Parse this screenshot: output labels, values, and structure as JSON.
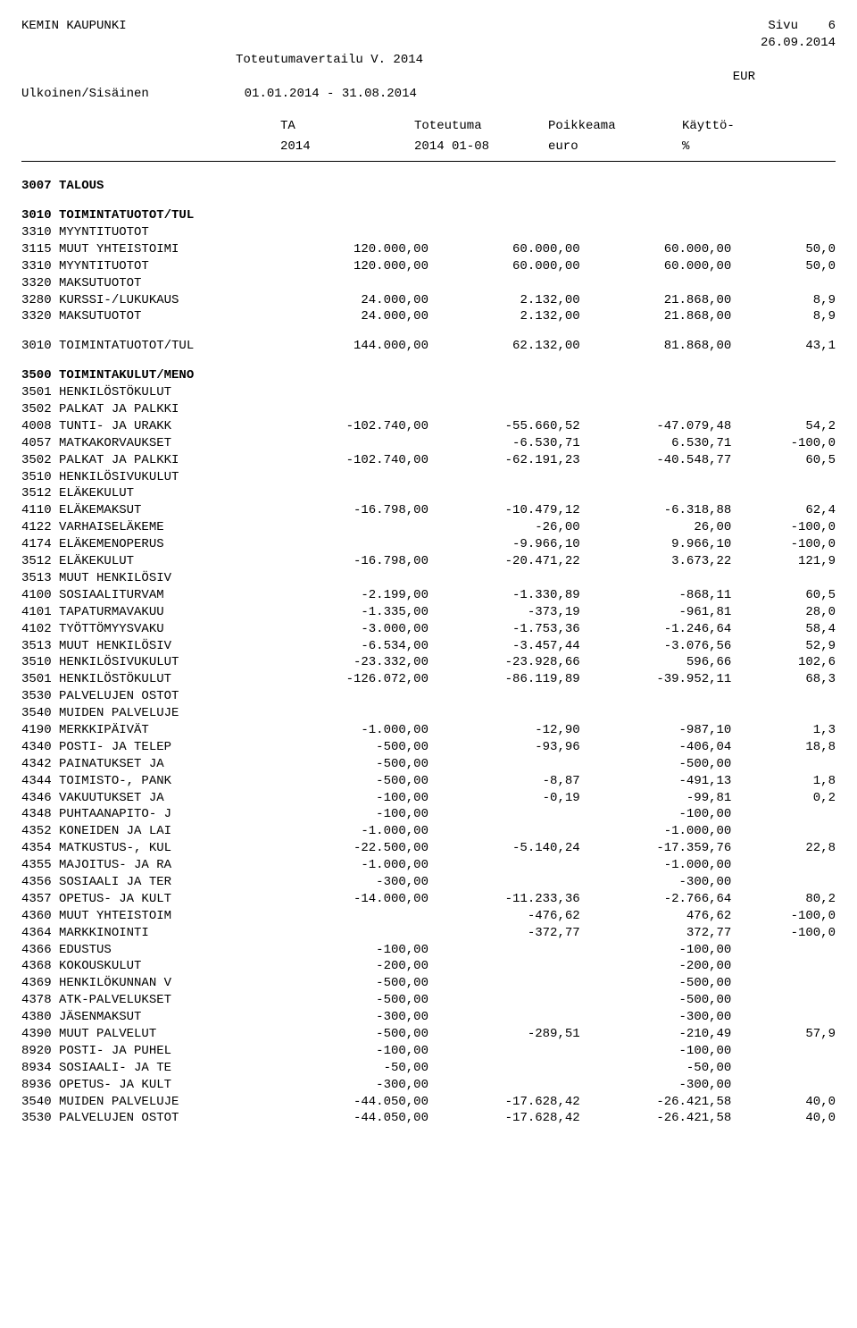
{
  "header": {
    "org": "KEMIN KAUPUNKI",
    "page_label": "Sivu",
    "page_no": "6",
    "date": "26.09.2014",
    "title": "Toteutumavertailu V. 2014",
    "currency": "EUR",
    "scope": "Ulkoinen/Sisäinen",
    "period": "01.01.2014 - 31.08.2014"
  },
  "columns": {
    "c1a": "TA",
    "c1b": "2014",
    "c2a": "Toteutuma",
    "c2b": "2014 01-08",
    "c3a": "Poikkeama",
    "c3b": "euro",
    "c4a": "Käyttö-",
    "c4b": "%"
  },
  "sections": [
    {
      "type": "heading",
      "bold": true,
      "indent": 0,
      "label": "3007 TALOUS"
    },
    {
      "type": "gap"
    },
    {
      "type": "heading",
      "bold": true,
      "indent": 0,
      "label": "3010 TOIMINTATUOTOT/TUL"
    },
    {
      "type": "row",
      "indent": 1,
      "label": "3310 MYYNTITUOTOT",
      "c1": "",
      "c2": "",
      "c3": "",
      "c4": ""
    },
    {
      "type": "row",
      "indent": 2,
      "label": "3115 MUUT YHTEISTOIMI",
      "c1": "120.000,00",
      "c2": "60.000,00",
      "c3": "60.000,00",
      "c4": "50,0"
    },
    {
      "type": "row",
      "indent": 1,
      "label": "3310 MYYNTITUOTOT",
      "c1": "120.000,00",
      "c2": "60.000,00",
      "c3": "60.000,00",
      "c4": "50,0"
    },
    {
      "type": "row",
      "indent": 1,
      "label": "3320 MAKSUTUOTOT",
      "c1": "",
      "c2": "",
      "c3": "",
      "c4": ""
    },
    {
      "type": "row",
      "indent": 2,
      "label": "3280 KURSSI-/LUKUKAUS",
      "c1": "24.000,00",
      "c2": "2.132,00",
      "c3": "21.868,00",
      "c4": "8,9"
    },
    {
      "type": "row",
      "indent": 1,
      "label": "3320 MAKSUTUOTOT",
      "c1": "24.000,00",
      "c2": "2.132,00",
      "c3": "21.868,00",
      "c4": "8,9"
    },
    {
      "type": "gap"
    },
    {
      "type": "row",
      "indent": 0,
      "label": "3010 TOIMINTATUOTOT/TUL",
      "c1": "144.000,00",
      "c2": "62.132,00",
      "c3": "81.868,00",
      "c4": "43,1"
    },
    {
      "type": "gap"
    },
    {
      "type": "heading",
      "bold": true,
      "indent": 0,
      "label": "3500 TOIMINTAKULUT/MENO"
    },
    {
      "type": "row",
      "indent": 1,
      "label": "3501 HENKILÖSTÖKULUT",
      "c1": "",
      "c2": "",
      "c3": "",
      "c4": ""
    },
    {
      "type": "row",
      "indent": 2,
      "label": "3502 PALKAT JA PALKKI",
      "c1": "",
      "c2": "",
      "c3": "",
      "c4": ""
    },
    {
      "type": "row",
      "indent": 3,
      "label": "4008 TUNTI- JA URAKK",
      "c1": "-102.740,00",
      "c2": "-55.660,52",
      "c3": "-47.079,48",
      "c4": "54,2"
    },
    {
      "type": "row",
      "indent": 3,
      "label": "4057 MATKAKORVAUKSET",
      "c1": "",
      "c2": "-6.530,71",
      "c3": "6.530,71",
      "c4": "-100,0"
    },
    {
      "type": "row",
      "indent": 2,
      "label": "3502 PALKAT JA PALKKI",
      "c1": "-102.740,00",
      "c2": "-62.191,23",
      "c3": "-40.548,77",
      "c4": "60,5"
    },
    {
      "type": "row",
      "indent": 2,
      "label": "3510 HENKILÖSIVUKULUT",
      "c1": "",
      "c2": "",
      "c3": "",
      "c4": ""
    },
    {
      "type": "row",
      "indent": 3,
      "label": "3512 ELÄKEKULUT",
      "c1": "",
      "c2": "",
      "c3": "",
      "c4": ""
    },
    {
      "type": "row",
      "indent": 4,
      "label": "4110 ELÄKEMAKSUT",
      "c1": "-16.798,00",
      "c2": "-10.479,12",
      "c3": "-6.318,88",
      "c4": "62,4"
    },
    {
      "type": "row",
      "indent": 4,
      "label": "4122 VARHAISELÄKEME",
      "c1": "",
      "c2": "-26,00",
      "c3": "26,00",
      "c4": "-100,0"
    },
    {
      "type": "row",
      "indent": 4,
      "label": "4174 ELÄKEMENOPERUS",
      "c1": "",
      "c2": "-9.966,10",
      "c3": "9.966,10",
      "c4": "-100,0"
    },
    {
      "type": "row",
      "indent": 3,
      "label": "3512 ELÄKEKULUT",
      "c1": "-16.798,00",
      "c2": "-20.471,22",
      "c3": "3.673,22",
      "c4": "121,9"
    },
    {
      "type": "row",
      "indent": 3,
      "label": "3513 MUUT HENKILÖSIV",
      "c1": "",
      "c2": "",
      "c3": "",
      "c4": ""
    },
    {
      "type": "row",
      "indent": 4,
      "label": "4100 SOSIAALITURVAM",
      "c1": "-2.199,00",
      "c2": "-1.330,89",
      "c3": "-868,11",
      "c4": "60,5"
    },
    {
      "type": "row",
      "indent": 4,
      "label": "4101 TAPATURMAVAKUU",
      "c1": "-1.335,00",
      "c2": "-373,19",
      "c3": "-961,81",
      "c4": "28,0"
    },
    {
      "type": "row",
      "indent": 4,
      "label": "4102 TYÖTTÖMYYSVAKU",
      "c1": "-3.000,00",
      "c2": "-1.753,36",
      "c3": "-1.246,64",
      "c4": "58,4"
    },
    {
      "type": "row",
      "indent": 3,
      "label": "3513 MUUT HENKILÖSIV",
      "c1": "-6.534,00",
      "c2": "-3.457,44",
      "c3": "-3.076,56",
      "c4": "52,9"
    },
    {
      "type": "row",
      "indent": 2,
      "label": "3510 HENKILÖSIVUKULUT",
      "c1": "-23.332,00",
      "c2": "-23.928,66",
      "c3": "596,66",
      "c4": "102,6"
    },
    {
      "type": "row",
      "indent": 1,
      "label": "3501 HENKILÖSTÖKULUT",
      "c1": "-126.072,00",
      "c2": "-86.119,89",
      "c3": "-39.952,11",
      "c4": "68,3"
    },
    {
      "type": "row",
      "indent": 1,
      "label": "3530 PALVELUJEN OSTOT",
      "c1": "",
      "c2": "",
      "c3": "",
      "c4": ""
    },
    {
      "type": "row",
      "indent": 2,
      "label": "3540 MUIDEN PALVELUJE",
      "c1": "",
      "c2": "",
      "c3": "",
      "c4": ""
    },
    {
      "type": "row",
      "indent": 3,
      "label": "4190 MERKKIPÄIVÄT",
      "c1": "-1.000,00",
      "c2": "-12,90",
      "c3": "-987,10",
      "c4": "1,3"
    },
    {
      "type": "row",
      "indent": 3,
      "label": "4340 POSTI- JA TELEP",
      "c1": "-500,00",
      "c2": "-93,96",
      "c3": "-406,04",
      "c4": "18,8"
    },
    {
      "type": "row",
      "indent": 3,
      "label": "4342 PAINATUKSET JA",
      "c1": "-500,00",
      "c2": "",
      "c3": "-500,00",
      "c4": ""
    },
    {
      "type": "row",
      "indent": 3,
      "label": "4344 TOIMISTO-, PANK",
      "c1": "-500,00",
      "c2": "-8,87",
      "c3": "-491,13",
      "c4": "1,8"
    },
    {
      "type": "row",
      "indent": 3,
      "label": "4346 VAKUUTUKSET JA",
      "c1": "-100,00",
      "c2": "-0,19",
      "c3": "-99,81",
      "c4": "0,2"
    },
    {
      "type": "row",
      "indent": 3,
      "label": "4348 PUHTAANAPITO- J",
      "c1": "-100,00",
      "c2": "",
      "c3": "-100,00",
      "c4": ""
    },
    {
      "type": "row",
      "indent": 3,
      "label": "4352 KONEIDEN JA LAI",
      "c1": "-1.000,00",
      "c2": "",
      "c3": "-1.000,00",
      "c4": ""
    },
    {
      "type": "row",
      "indent": 3,
      "label": "4354 MATKUSTUS-, KUL",
      "c1": "-22.500,00",
      "c2": "-5.140,24",
      "c3": "-17.359,76",
      "c4": "22,8"
    },
    {
      "type": "row",
      "indent": 3,
      "label": "4355 MAJOITUS- JA RA",
      "c1": "-1.000,00",
      "c2": "",
      "c3": "-1.000,00",
      "c4": ""
    },
    {
      "type": "row",
      "indent": 3,
      "label": "4356 SOSIAALI JA TER",
      "c1": "-300,00",
      "c2": "",
      "c3": "-300,00",
      "c4": ""
    },
    {
      "type": "row",
      "indent": 3,
      "label": "4357 OPETUS- JA KULT",
      "c1": "-14.000,00",
      "c2": "-11.233,36",
      "c3": "-2.766,64",
      "c4": "80,2"
    },
    {
      "type": "row",
      "indent": 3,
      "label": "4360 MUUT YHTEISTOIM",
      "c1": "",
      "c2": "-476,62",
      "c3": "476,62",
      "c4": "-100,0"
    },
    {
      "type": "row",
      "indent": 3,
      "label": "4364 MARKKINOINTI",
      "c1": "",
      "c2": "-372,77",
      "c3": "372,77",
      "c4": "-100,0"
    },
    {
      "type": "row",
      "indent": 3,
      "label": "4366 EDUSTUS",
      "c1": "-100,00",
      "c2": "",
      "c3": "-100,00",
      "c4": ""
    },
    {
      "type": "row",
      "indent": 3,
      "label": "4368 KOKOUSKULUT",
      "c1": "-200,00",
      "c2": "",
      "c3": "-200,00",
      "c4": ""
    },
    {
      "type": "row",
      "indent": 3,
      "label": "4369 HENKILÖKUNNAN V",
      "c1": "-500,00",
      "c2": "",
      "c3": "-500,00",
      "c4": ""
    },
    {
      "type": "row",
      "indent": 3,
      "label": "4378 ATK-PALVELUKSET",
      "c1": "-500,00",
      "c2": "",
      "c3": "-500,00",
      "c4": ""
    },
    {
      "type": "row",
      "indent": 3,
      "label": "4380 JÄSENMAKSUT",
      "c1": "-300,00",
      "c2": "",
      "c3": "-300,00",
      "c4": ""
    },
    {
      "type": "row",
      "indent": 3,
      "label": "4390 MUUT PALVELUT",
      "c1": "-500,00",
      "c2": "-289,51",
      "c3": "-210,49",
      "c4": "57,9"
    },
    {
      "type": "row",
      "indent": 3,
      "label": "8920 POSTI- JA PUHEL",
      "c1": "-100,00",
      "c2": "",
      "c3": "-100,00",
      "c4": ""
    },
    {
      "type": "row",
      "indent": 3,
      "label": "8934 SOSIAALI- JA TE",
      "c1": "-50,00",
      "c2": "",
      "c3": "-50,00",
      "c4": ""
    },
    {
      "type": "row",
      "indent": 3,
      "label": "8936 OPETUS- JA KULT",
      "c1": "-300,00",
      "c2": "",
      "c3": "-300,00",
      "c4": ""
    },
    {
      "type": "row",
      "indent": 2,
      "label": "3540 MUIDEN PALVELUJE",
      "c1": "-44.050,00",
      "c2": "-17.628,42",
      "c3": "-26.421,58",
      "c4": "40,0"
    },
    {
      "type": "row",
      "indent": 1,
      "label": "3530 PALVELUJEN OSTOT",
      "c1": "-44.050,00",
      "c2": "-17.628,42",
      "c3": "-26.421,58",
      "c4": "40,0"
    }
  ]
}
